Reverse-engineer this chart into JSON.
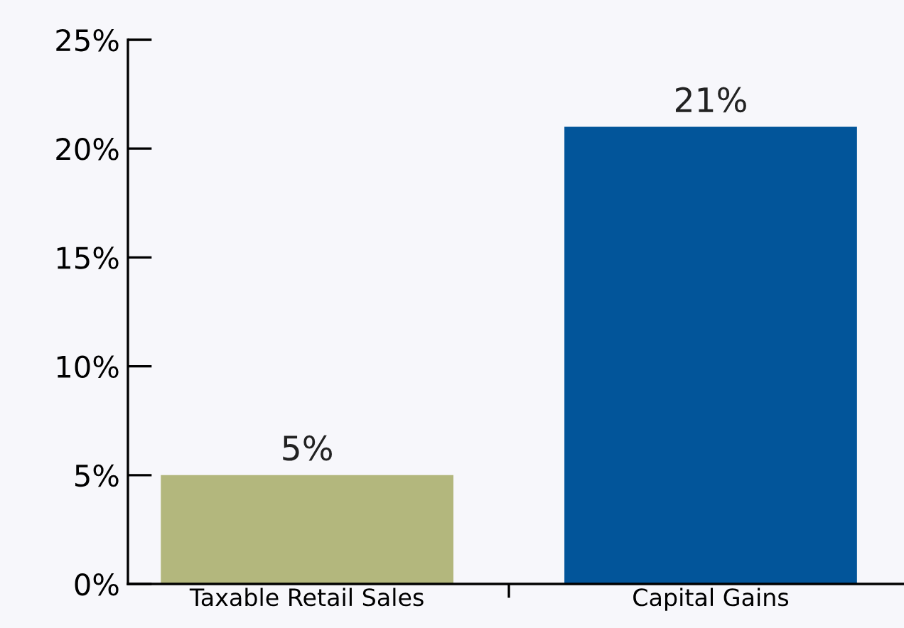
{
  "chart_data": {
    "type": "bar",
    "categories": [
      "Taxable Retail Sales",
      "Capital Gains"
    ],
    "values": [
      5,
      21
    ],
    "colors": [
      "#b3b77d",
      "#02559a"
    ],
    "value_labels": [
      "5%",
      "21%"
    ],
    "ylim": [
      0,
      25
    ],
    "yticks": [
      {
        "value": 0,
        "label": "0%"
      },
      {
        "value": 5,
        "label": "5%"
      },
      {
        "value": 10,
        "label": "10%"
      },
      {
        "value": 15,
        "label": "15%"
      },
      {
        "value": 20,
        "label": "20%"
      },
      {
        "value": 25,
        "label": "25%"
      }
    ],
    "grid": false,
    "legend": false
  }
}
